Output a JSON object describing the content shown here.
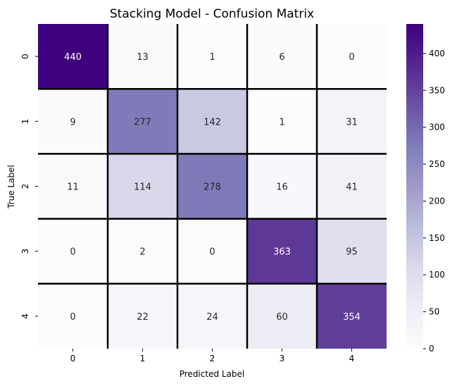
{
  "chart_data": {
    "type": "heatmap",
    "title": "Stacking Model - Confusion Matrix",
    "xlabel": "Predicted Label",
    "ylabel": "True Label",
    "x_categories": [
      "0",
      "1",
      "2",
      "3",
      "4"
    ],
    "y_categories": [
      "0",
      "1",
      "2",
      "3",
      "4"
    ],
    "values": [
      [
        440,
        13,
        1,
        6,
        0
      ],
      [
        9,
        277,
        142,
        1,
        31
      ],
      [
        11,
        114,
        278,
        16,
        41
      ],
      [
        0,
        2,
        0,
        363,
        95
      ],
      [
        0,
        22,
        24,
        60,
        354
      ]
    ],
    "colormap": "Purples",
    "vmin": 0,
    "vmax": 440,
    "colorbar_ticks": [
      "0",
      "50",
      "100",
      "150",
      "200",
      "250",
      "300",
      "350",
      "400"
    ],
    "annotate": true,
    "cell_border_color": "#000000",
    "legend_placement": "right"
  }
}
